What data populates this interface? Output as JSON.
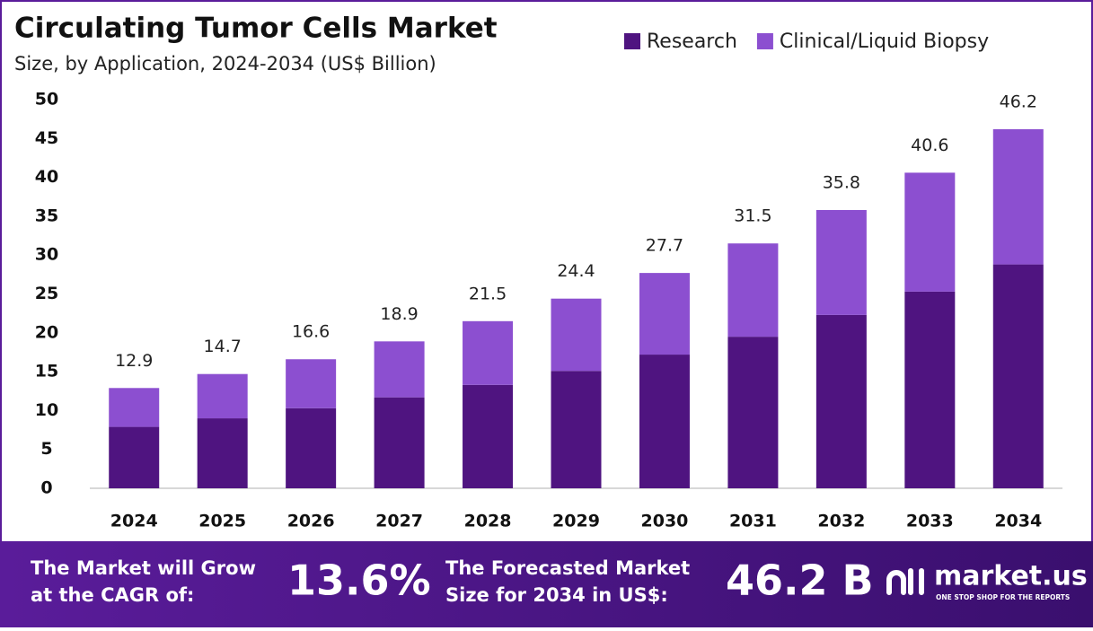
{
  "chart_data": {
    "type": "stacked-bar",
    "title": "Circulating Tumor Cells Market",
    "subtitle": "Size, by Application, 2024-2034 (US$ Billion)",
    "categories": [
      "2024",
      "2025",
      "2026",
      "2027",
      "2028",
      "2029",
      "2030",
      "2031",
      "2032",
      "2033",
      "2034"
    ],
    "series": [
      {
        "name": "Research",
        "color": "#4f1480",
        "values": [
          7.9,
          9.0,
          10.3,
          11.7,
          13.3,
          15.1,
          17.2,
          19.5,
          22.3,
          25.3,
          28.8
        ]
      },
      {
        "name": "Clinical/Liquid Biopsy",
        "color": "#8c4fd0",
        "values": [
          5.0,
          5.7,
          6.3,
          7.2,
          8.2,
          9.3,
          10.5,
          12.0,
          13.5,
          15.3,
          17.4
        ]
      }
    ],
    "totals": [
      12.9,
      14.7,
      16.6,
      18.9,
      21.5,
      24.4,
      27.7,
      31.5,
      35.8,
      40.6,
      46.2
    ],
    "ylim": [
      0,
      50
    ],
    "yticks": [
      0,
      5,
      10,
      15,
      20,
      25,
      30,
      35,
      40,
      45,
      50
    ],
    "grid": false,
    "legend": "top-right"
  },
  "footer": {
    "cagr_label": [
      "The Market will Grow",
      "at the CAGR of:"
    ],
    "cagr_value": "13.6%",
    "forecast_label": [
      "The Forecasted Market",
      "Size for 2034 in US$:"
    ],
    "forecast_value": "46.2 B",
    "brand": "market.us",
    "brand_tagline": "ONE STOP SHOP FOR THE REPORTS"
  }
}
